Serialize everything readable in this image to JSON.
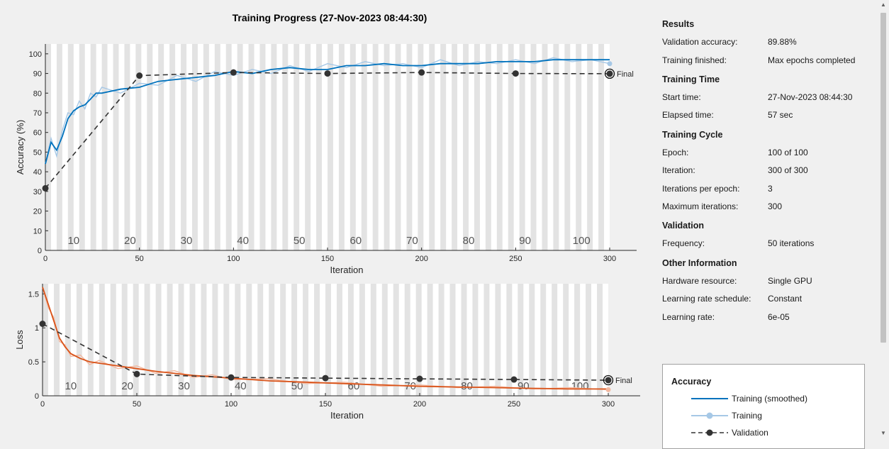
{
  "chart_data": [
    {
      "type": "line",
      "title": "Training Progress (27-Nov-2023 08:44:30)",
      "xlabel": "Iteration",
      "ylabel": "Accuracy (%)",
      "xlim": [
        0,
        300
      ],
      "ylim": [
        0,
        105
      ],
      "xticks": [
        0,
        50,
        100,
        150,
        200,
        250,
        300
      ],
      "yticks": [
        0,
        10,
        20,
        30,
        40,
        50,
        60,
        70,
        80,
        90,
        100
      ],
      "epoch_labels": [
        "10",
        "20",
        "30",
        "40",
        "50",
        "60",
        "70",
        "80",
        "90",
        "100"
      ],
      "epochs": 100,
      "iterations_per_epoch": 3,
      "final_label": "Final",
      "series": [
        {
          "name": "Training (smoothed)",
          "color": "#0072bd",
          "x": [
            0,
            3,
            6,
            9,
            12,
            15,
            18,
            21,
            24,
            27,
            30,
            40,
            50,
            60,
            70,
            80,
            90,
            100,
            110,
            120,
            130,
            140,
            150,
            160,
            170,
            180,
            190,
            200,
            210,
            220,
            230,
            240,
            250,
            260,
            270,
            280,
            290,
            300
          ],
          "y": [
            44,
            55,
            51,
            58,
            67,
            71,
            73,
            74,
            77,
            80,
            80,
            82,
            83,
            86,
            87,
            88,
            89,
            91,
            90,
            92,
            93,
            92,
            92,
            94,
            94,
            95,
            94,
            94,
            95,
            95,
            95,
            96,
            96,
            96,
            97,
            97,
            97,
            97
          ]
        },
        {
          "name": "Training",
          "color": "#a6c8e6",
          "x": [
            0,
            3,
            6,
            9,
            12,
            15,
            18,
            21,
            24,
            27,
            30,
            40,
            50,
            60,
            70,
            80,
            90,
            100,
            110,
            120,
            130,
            140,
            150,
            160,
            170,
            180,
            190,
            200,
            210,
            220,
            230,
            240,
            250,
            260,
            270,
            280,
            290,
            300
          ],
          "y": [
            44,
            57,
            48,
            61,
            70,
            69,
            76,
            72,
            80,
            78,
            83,
            80,
            85,
            84,
            89,
            86,
            91,
            89,
            92,
            90,
            94,
            91,
            95,
            93,
            96,
            94,
            95,
            93,
            97,
            94,
            96,
            95,
            97,
            95,
            98,
            96,
            97,
            95
          ]
        },
        {
          "name": "Validation",
          "color": "#333333",
          "x": [
            0,
            50,
            100,
            150,
            200,
            250,
            300
          ],
          "y": [
            31.6,
            88.9,
            90.5,
            90.0,
            90.5,
            90.0,
            89.88
          ]
        }
      ]
    },
    {
      "type": "line",
      "xlabel": "Iteration",
      "ylabel": "Loss",
      "xlim": [
        0,
        300
      ],
      "ylim": [
        0,
        1.65
      ],
      "xticks": [
        0,
        50,
        100,
        150,
        200,
        250,
        300
      ],
      "yticks": [
        0,
        0.5,
        1,
        1.5
      ],
      "ytick_labels": [
        "0",
        "0.5",
        "1",
        "1.5"
      ],
      "epoch_labels": [
        "10",
        "20",
        "30",
        "40",
        "50",
        "60",
        "70",
        "80",
        "90",
        "100"
      ],
      "epochs": 100,
      "iterations_per_epoch": 3,
      "final_label": "Final",
      "series": [
        {
          "name": "Training (smoothed)",
          "color": "#d95319",
          "x": [
            0,
            3,
            6,
            9,
            12,
            15,
            20,
            25,
            30,
            40,
            50,
            60,
            70,
            80,
            90,
            100,
            120,
            140,
            160,
            180,
            200,
            220,
            240,
            260,
            280,
            300
          ],
          "y": [
            1.6,
            1.35,
            1.1,
            0.85,
            0.72,
            0.62,
            0.55,
            0.5,
            0.48,
            0.44,
            0.4,
            0.36,
            0.33,
            0.3,
            0.28,
            0.26,
            0.22,
            0.2,
            0.18,
            0.16,
            0.14,
            0.13,
            0.12,
            0.11,
            0.1,
            0.1
          ]
        },
        {
          "name": "Training",
          "color": "#f2b8a0",
          "x": [
            0,
            3,
            6,
            9,
            12,
            15,
            20,
            25,
            30,
            40,
            50,
            60,
            70,
            80,
            90,
            100,
            120,
            140,
            160,
            180,
            200,
            220,
            240,
            260,
            280,
            300
          ],
          "y": [
            1.6,
            1.3,
            1.15,
            0.8,
            0.75,
            0.58,
            0.6,
            0.46,
            0.52,
            0.4,
            0.44,
            0.33,
            0.37,
            0.27,
            0.31,
            0.24,
            0.25,
            0.18,
            0.2,
            0.14,
            0.16,
            0.12,
            0.14,
            0.1,
            0.12,
            0.09
          ]
        },
        {
          "name": "Validation",
          "color": "#333333",
          "x": [
            0,
            50,
            100,
            150,
            200,
            250,
            300
          ],
          "y": [
            1.06,
            0.32,
            0.27,
            0.26,
            0.25,
            0.24,
            0.23
          ]
        }
      ]
    }
  ],
  "info": {
    "results_title": "Results",
    "validation_accuracy_label": "Validation accuracy:",
    "validation_accuracy_value": "89.88%",
    "training_finished_label": "Training finished:",
    "training_finished_value": "Max epochs completed",
    "time_title": "Training Time",
    "start_time_label": "Start time:",
    "start_time_value": "27-Nov-2023 08:44:30",
    "elapsed_label": "Elapsed time:",
    "elapsed_value": "57 sec",
    "cycle_title": "Training Cycle",
    "epoch_label": "Epoch:",
    "epoch_value": "100 of 100",
    "iteration_label": "Iteration:",
    "iteration_value": "300 of 300",
    "ipe_label": "Iterations per epoch:",
    "ipe_value": "3",
    "max_iter_label": "Maximum iterations:",
    "max_iter_value": "300",
    "validation_title": "Validation",
    "frequency_label": "Frequency:",
    "frequency_value": "50 iterations",
    "other_title": "Other Information",
    "hardware_label": "Hardware resource:",
    "hardware_value": "Single GPU",
    "lr_schedule_label": "Learning rate schedule:",
    "lr_schedule_value": "Constant",
    "lr_label": "Learning rate:",
    "lr_value": "6e-05"
  },
  "legend": {
    "title": "Accuracy",
    "items": [
      "Training (smoothed)",
      "Training",
      "Validation"
    ],
    "colors": [
      "#0072bd",
      "#a6c8e6",
      "#333333"
    ]
  }
}
